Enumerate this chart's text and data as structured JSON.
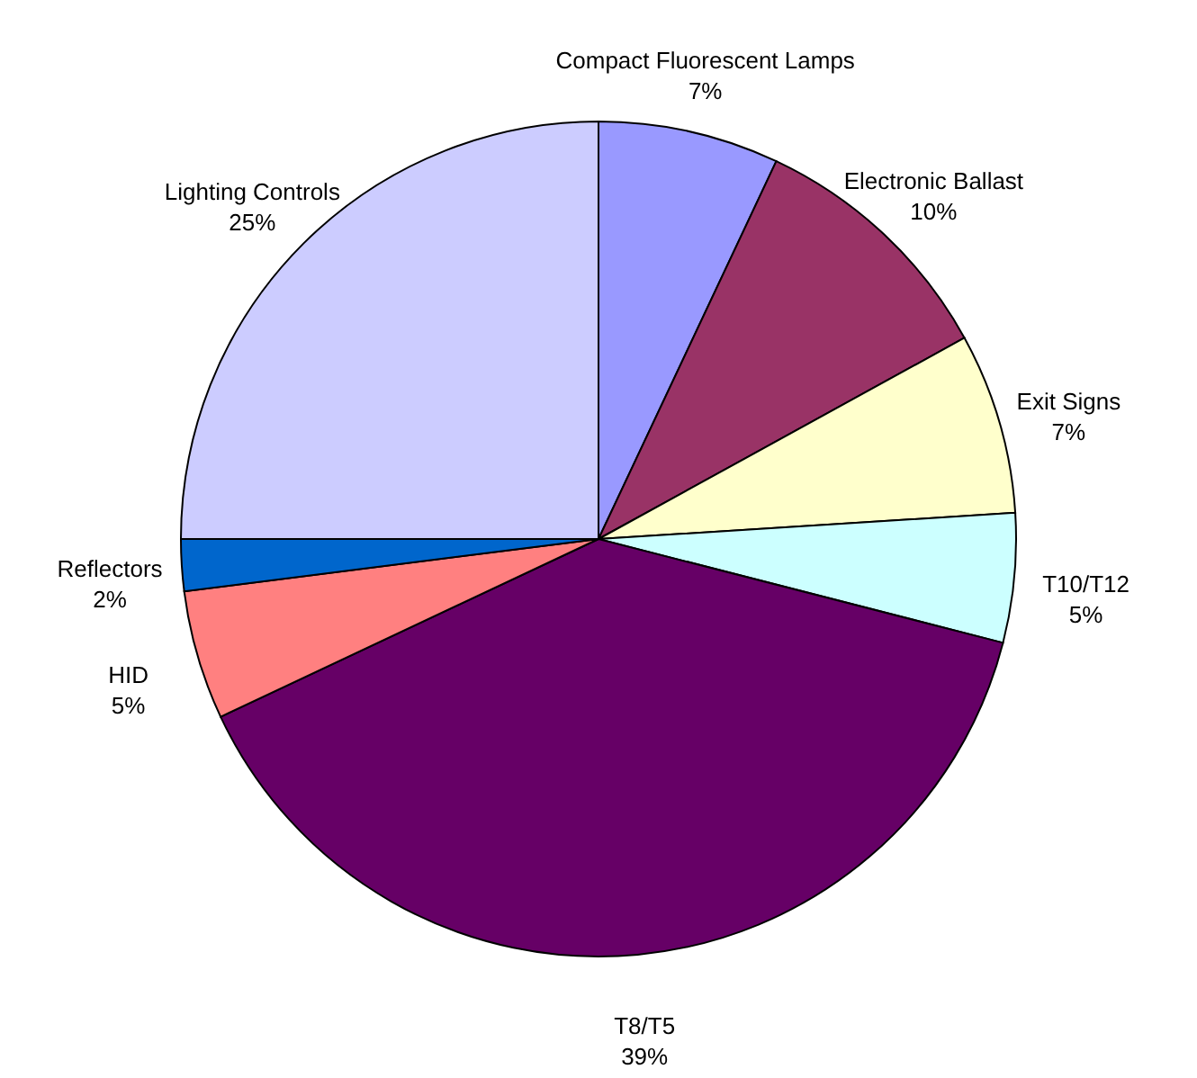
{
  "chart_data": {
    "type": "pie",
    "categories": [
      "Compact Fluorescent Lamps",
      "Electronic Ballast",
      "Exit Signs",
      "T10/T12",
      "T8/T5",
      "HID",
      "Reflectors",
      "Lighting Controls"
    ],
    "values": [
      7,
      10,
      7,
      5,
      39,
      5,
      2,
      25
    ],
    "value_labels": [
      "7%",
      "10%",
      "7%",
      "5%",
      "39%",
      "5%",
      "2%",
      "25%"
    ],
    "colors": [
      "#9999ff",
      "#993366",
      "#ffffcc",
      "#ccffff",
      "#660066",
      "#ff8080",
      "#0066cc",
      "#ccccff"
    ]
  }
}
